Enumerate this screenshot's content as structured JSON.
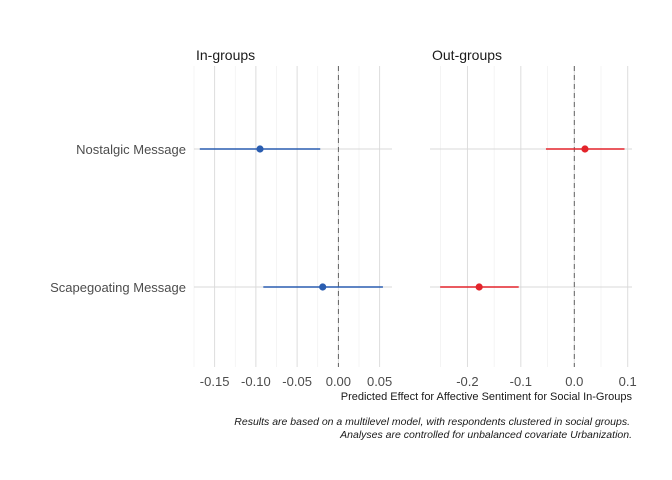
{
  "chart_data": {
    "type": "scatter",
    "subtype": "coefficient-plot-with-intervals",
    "xlabel": "Predicted Effect for Affective Sentiment for Social In-Groups",
    "caption": [
      "Results are based on a multilevel model, with respondents clustered in social groups.",
      "Analyses are controlled for unbalanced covariate Urbanization."
    ],
    "categories": [
      "Nostalgic Message",
      "Scapegoating Message"
    ],
    "reference_line": 0,
    "grid": true,
    "legend": "none",
    "panels": [
      {
        "title": "In-groups",
        "color": "#2a5db0",
        "xlim": [
          -0.175,
          0.065
        ],
        "ticks": [
          -0.15,
          -0.1,
          -0.05,
          0.0,
          0.05
        ],
        "tick_labels": [
          "-0.15",
          "-0.10",
          "-0.05",
          "0.00",
          "0.05"
        ],
        "points": [
          {
            "category": "Nostalgic Message",
            "estimate": -0.095,
            "lower": -0.168,
            "upper": -0.022
          },
          {
            "category": "Scapegoating Message",
            "estimate": -0.019,
            "lower": -0.091,
            "upper": 0.054
          }
        ]
      },
      {
        "title": "Out-groups",
        "color": "#e3242b",
        "xlim": [
          -0.27,
          0.108
        ],
        "ticks": [
          -0.2,
          -0.1,
          0.0,
          0.1
        ],
        "tick_labels": [
          "-0.2",
          "-0.1",
          "0.0",
          "0.1"
        ],
        "points": [
          {
            "category": "Nostalgic Message",
            "estimate": 0.02,
            "lower": -0.053,
            "upper": 0.094
          },
          {
            "category": "Scapegoating Message",
            "estimate": -0.178,
            "lower": -0.251,
            "upper": -0.104
          }
        ]
      }
    ]
  }
}
